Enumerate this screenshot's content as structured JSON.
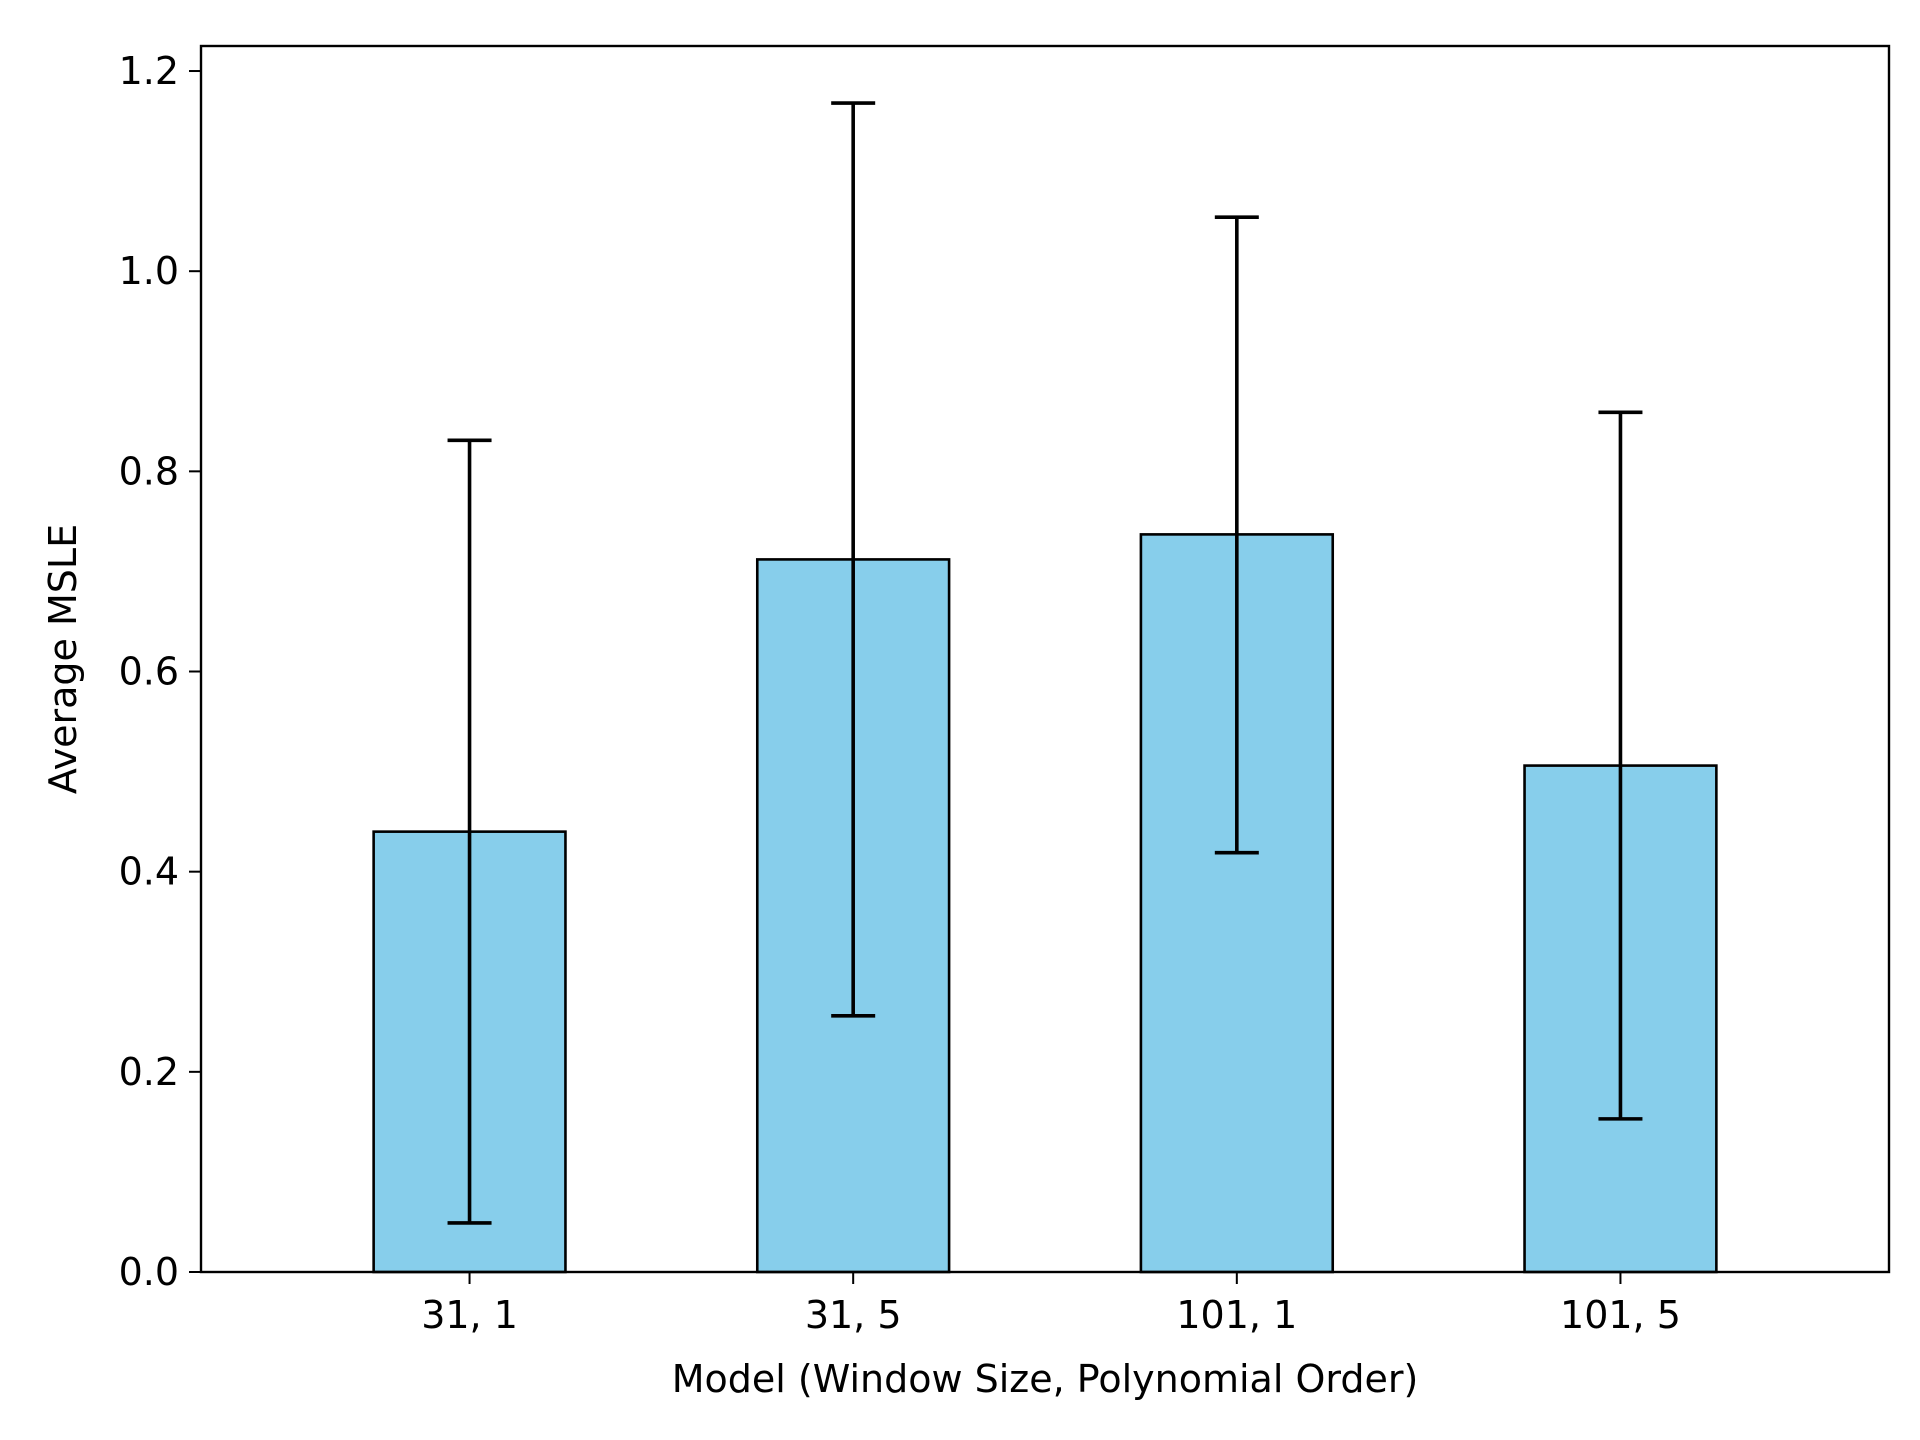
{
  "chart_data": {
    "type": "bar",
    "title": "",
    "xlabel": "Model (Window Size, Polynomial Order)",
    "ylabel": "Average MSLE",
    "categories": [
      "31, 1",
      "31, 5",
      "101, 1",
      "101, 5"
    ],
    "values": [
      0.44,
      0.712,
      0.737,
      0.506
    ],
    "error_low": [
      0.049,
      0.256,
      0.419,
      0.153
    ],
    "error_high": [
      0.831,
      1.168,
      1.054,
      0.859
    ],
    "ylim": [
      0,
      1.225
    ],
    "yticks": [
      "0.0",
      "0.2",
      "0.4",
      "0.6",
      "0.8",
      "1.0",
      "1.2"
    ],
    "grid": false,
    "colors": {
      "bar_fill": "#87ceeb",
      "bar_edge": "#000000",
      "error_bar": "#000000"
    }
  }
}
